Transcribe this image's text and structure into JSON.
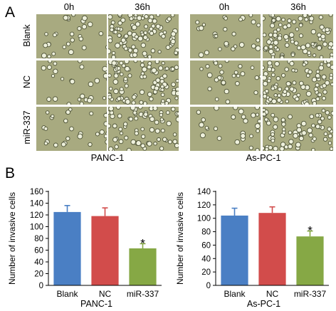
{
  "panel_a": {
    "letter": "A",
    "time_labels": [
      "0h",
      "36h"
    ],
    "row_labels": [
      "Blank",
      "NC",
      "miR-337"
    ],
    "groups": [
      "PANC-1",
      "As-PC-1"
    ]
  },
  "panel_b": {
    "letter": "B"
  },
  "chart_data": [
    {
      "type": "bar",
      "title": "PANC-1",
      "xlabel": "PANC-1",
      "ylabel": "Number of invasive cells",
      "categories": [
        "Blank",
        "NC",
        "miR-337"
      ],
      "values": [
        125,
        118,
        63
      ],
      "errors": [
        11,
        14,
        8
      ],
      "colors": [
        "#4a7fc4",
        "#d24c4b",
        "#86a845"
      ],
      "ylim": [
        0,
        160
      ],
      "yticks": [
        0,
        20,
        40,
        60,
        80,
        100,
        120,
        140,
        160
      ],
      "significance": [
        null,
        null,
        "*"
      ],
      "grid": false
    },
    {
      "type": "bar",
      "title": "As-PC-1",
      "xlabel": "As-PC-1",
      "ylabel": "Number of invasive cells",
      "categories": [
        "Blank",
        "NC",
        "miR-337"
      ],
      "values": [
        104,
        108,
        73
      ],
      "errors": [
        11,
        9,
        8
      ],
      "colors": [
        "#4a7fc4",
        "#d24c4b",
        "#86a845"
      ],
      "ylim": [
        0,
        140
      ],
      "yticks": [
        0,
        20,
        40,
        60,
        80,
        100,
        120,
        140
      ],
      "significance": [
        null,
        null,
        "*"
      ],
      "grid": false
    }
  ]
}
